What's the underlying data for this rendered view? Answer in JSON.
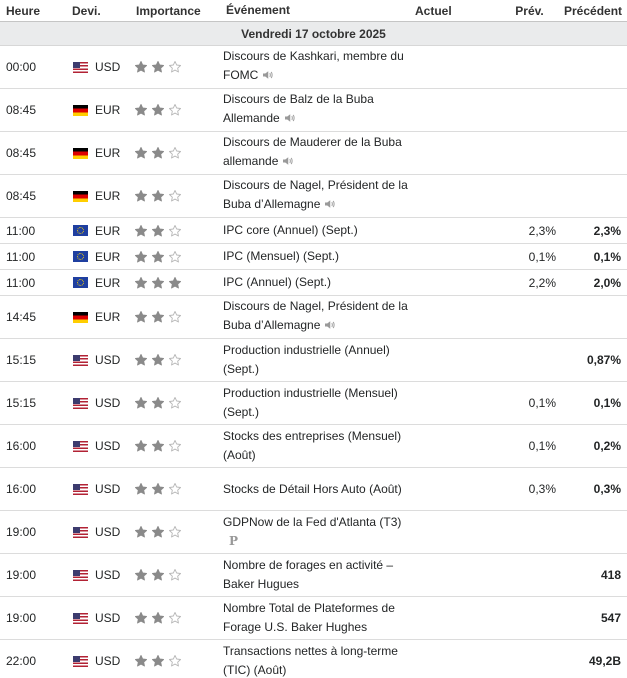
{
  "headers": {
    "time": "Heure",
    "currency": "Devi.",
    "importance": "Importance",
    "event": "Événement",
    "actual": "Actuel",
    "forecast": "Prév.",
    "previous": "Précédent"
  },
  "day_label": "Vendredi 17 octobre 2025",
  "colors": {
    "star_filled": "#8a8a8a",
    "star_empty": "#b8b8b8",
    "day_bg": "#eaebec"
  },
  "rows": [
    {
      "time": "00:00",
      "flag": "us",
      "currency": "USD",
      "stars": 2,
      "event": "Discours de Kashkari, membre du FOMC",
      "icon": "speaker-icon",
      "actual": "",
      "forecast": "",
      "previous": ""
    },
    {
      "time": "08:45",
      "flag": "de",
      "currency": "EUR",
      "stars": 2,
      "event": "Discours de Balz de la Buba Allemande",
      "icon": "speaker-icon",
      "actual": "",
      "forecast": "",
      "previous": ""
    },
    {
      "time": "08:45",
      "flag": "de",
      "currency": "EUR",
      "stars": 2,
      "event": "Discours de Mauderer de la Buba allemande",
      "icon": "speaker-icon",
      "actual": "",
      "forecast": "",
      "previous": ""
    },
    {
      "time": "08:45",
      "flag": "de",
      "currency": "EUR",
      "stars": 2,
      "event": "Discours de Nagel, Président de la Buba d’Allemagne",
      "icon": "speaker-icon",
      "actual": "",
      "forecast": "",
      "previous": ""
    },
    {
      "time": "11:00",
      "flag": "eu",
      "currency": "EUR",
      "stars": 2,
      "event": "IPC core (Annuel) (Sept.)",
      "icon": "",
      "actual": "",
      "forecast": "2,3%",
      "previous": "2,3%"
    },
    {
      "time": "11:00",
      "flag": "eu",
      "currency": "EUR",
      "stars": 2,
      "event": "IPC (Mensuel) (Sept.)",
      "icon": "",
      "actual": "",
      "forecast": "0,1%",
      "previous": "0,1%"
    },
    {
      "time": "11:00",
      "flag": "eu",
      "currency": "EUR",
      "stars": 3,
      "event": "IPC (Annuel) (Sept.)",
      "icon": "",
      "actual": "",
      "forecast": "2,2%",
      "previous": "2,0%"
    },
    {
      "time": "14:45",
      "flag": "de",
      "currency": "EUR",
      "stars": 2,
      "event": "Discours de Nagel, Président de la Buba d’Allemagne",
      "icon": "speaker-icon",
      "actual": "",
      "forecast": "",
      "previous": ""
    },
    {
      "time": "15:15",
      "flag": "us",
      "currency": "USD",
      "stars": 2,
      "event": "Production industrielle (Annuel) (Sept.)",
      "icon": "",
      "actual": "",
      "forecast": "",
      "previous": "0,87%"
    },
    {
      "time": "15:15",
      "flag": "us",
      "currency": "USD",
      "stars": 2,
      "event": "Production industrielle (Mensuel) (Sept.)",
      "icon": "",
      "actual": "",
      "forecast": "0,1%",
      "previous": "0,1%"
    },
    {
      "time": "16:00",
      "flag": "us",
      "currency": "USD",
      "stars": 2,
      "event": "Stocks des entreprises (Mensuel) (Août)",
      "icon": "",
      "actual": "",
      "forecast": "0,1%",
      "previous": "0,2%"
    },
    {
      "time": "16:00",
      "flag": "us",
      "currency": "USD",
      "stars": 2,
      "event": "Stocks de Détail Hors Auto (Août)",
      "icon": "",
      "actual": "",
      "forecast": "0,3%",
      "previous": "0,3%"
    },
    {
      "time": "19:00",
      "flag": "us",
      "currency": "USD",
      "stars": 2,
      "event": "GDPNow de la Fed d'Atlanta (T3)",
      "icon": "preliminary-icon",
      "icon_text": "P",
      "actual": "",
      "forecast": "",
      "previous": ""
    },
    {
      "time": "19:00",
      "flag": "us",
      "currency": "USD",
      "stars": 2,
      "event": "Nombre de forages en activité – Baker Hugues",
      "icon": "",
      "actual": "",
      "forecast": "",
      "previous": "418"
    },
    {
      "time": "19:00",
      "flag": "us",
      "currency": "USD",
      "stars": 2,
      "event": "Nombre Total de Plateformes de Forage U.S. Baker Hughes",
      "icon": "",
      "actual": "",
      "forecast": "",
      "previous": "547"
    },
    {
      "time": "22:00",
      "flag": "us",
      "currency": "USD",
      "stars": 2,
      "event": "Transactions nettes à long-terme (TIC) (Août)",
      "icon": "",
      "actual": "",
      "forecast": "",
      "previous": "49,2B"
    }
  ]
}
